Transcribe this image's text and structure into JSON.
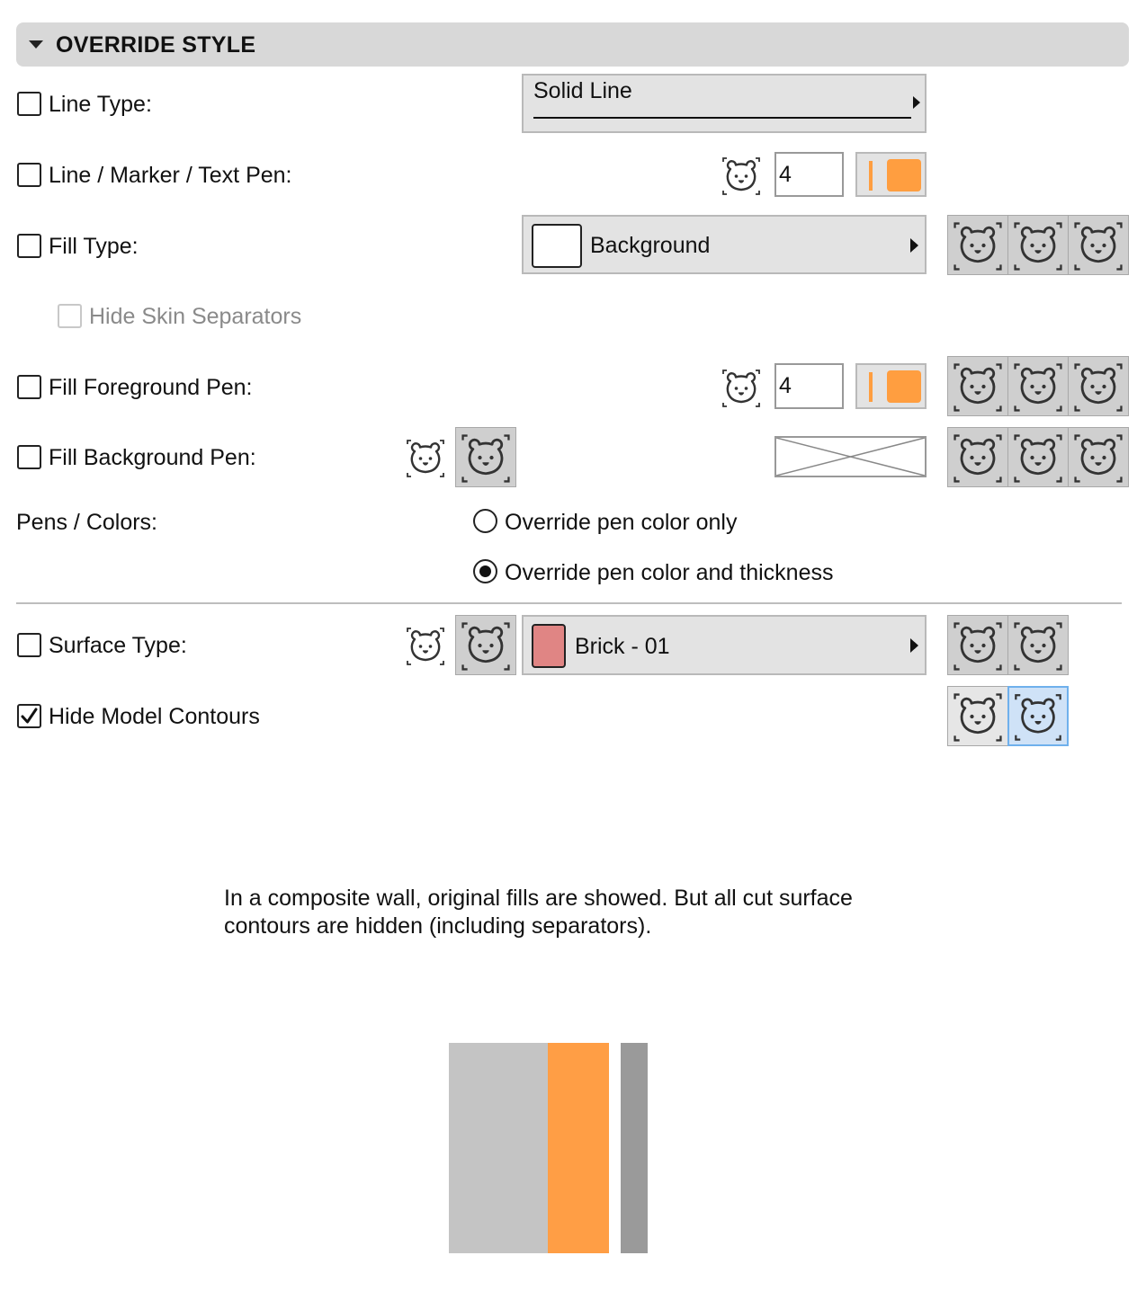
{
  "section": {
    "title": "OVERRIDE STYLE"
  },
  "line_type": {
    "label": "Line Type:",
    "checked": false,
    "value": "Solid Line"
  },
  "line_marker_text_pen": {
    "label": "Line / Marker / Text Pen:",
    "checked": false,
    "pen_number": "4",
    "pen_color": "#ff9e40"
  },
  "fill_type": {
    "label": "Fill Type:",
    "checked": false,
    "value": "Background"
  },
  "hide_skin_separators": {
    "label": "Hide Skin Separators",
    "checked": false,
    "enabled": false
  },
  "fill_foreground_pen": {
    "label": "Fill Foreground Pen:",
    "checked": false,
    "pen_number": "4",
    "pen_color": "#ff9e40"
  },
  "fill_background_pen": {
    "label": "Fill Background Pen:",
    "checked": false
  },
  "pens_colors": {
    "label": "Pens / Colors:",
    "options": [
      {
        "label": "Override pen color only",
        "selected": false
      },
      {
        "label": "Override pen color and thickness",
        "selected": true
      }
    ]
  },
  "surface_type": {
    "label": "Surface Type:",
    "checked": false,
    "value": "Brick - 01",
    "swatch_color": "#e08584"
  },
  "hide_model_contours": {
    "label": "Hide Model Contours",
    "checked": true
  },
  "description": {
    "text": "In a composite wall, original fills are showed. But all cut surface contours are hidden (including separators)."
  },
  "icons": {
    "bear": "bear-icon",
    "header_toggle": "triangle-down-icon",
    "dropdown_arrow": "triangle-right-icon"
  },
  "illustration": {
    "colors": [
      "#c4c4c4",
      "#ff9e45",
      "#9a9a9a"
    ]
  }
}
